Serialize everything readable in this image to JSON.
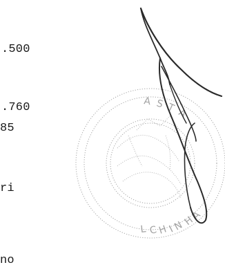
{
  "document": {
    "lines": [
      ".500",
      ".760",
      "85",
      "ri",
      "no"
    ]
  },
  "seal": {
    "text_top": "A STA",
    "text_bottom": "L C H IN HA"
  }
}
